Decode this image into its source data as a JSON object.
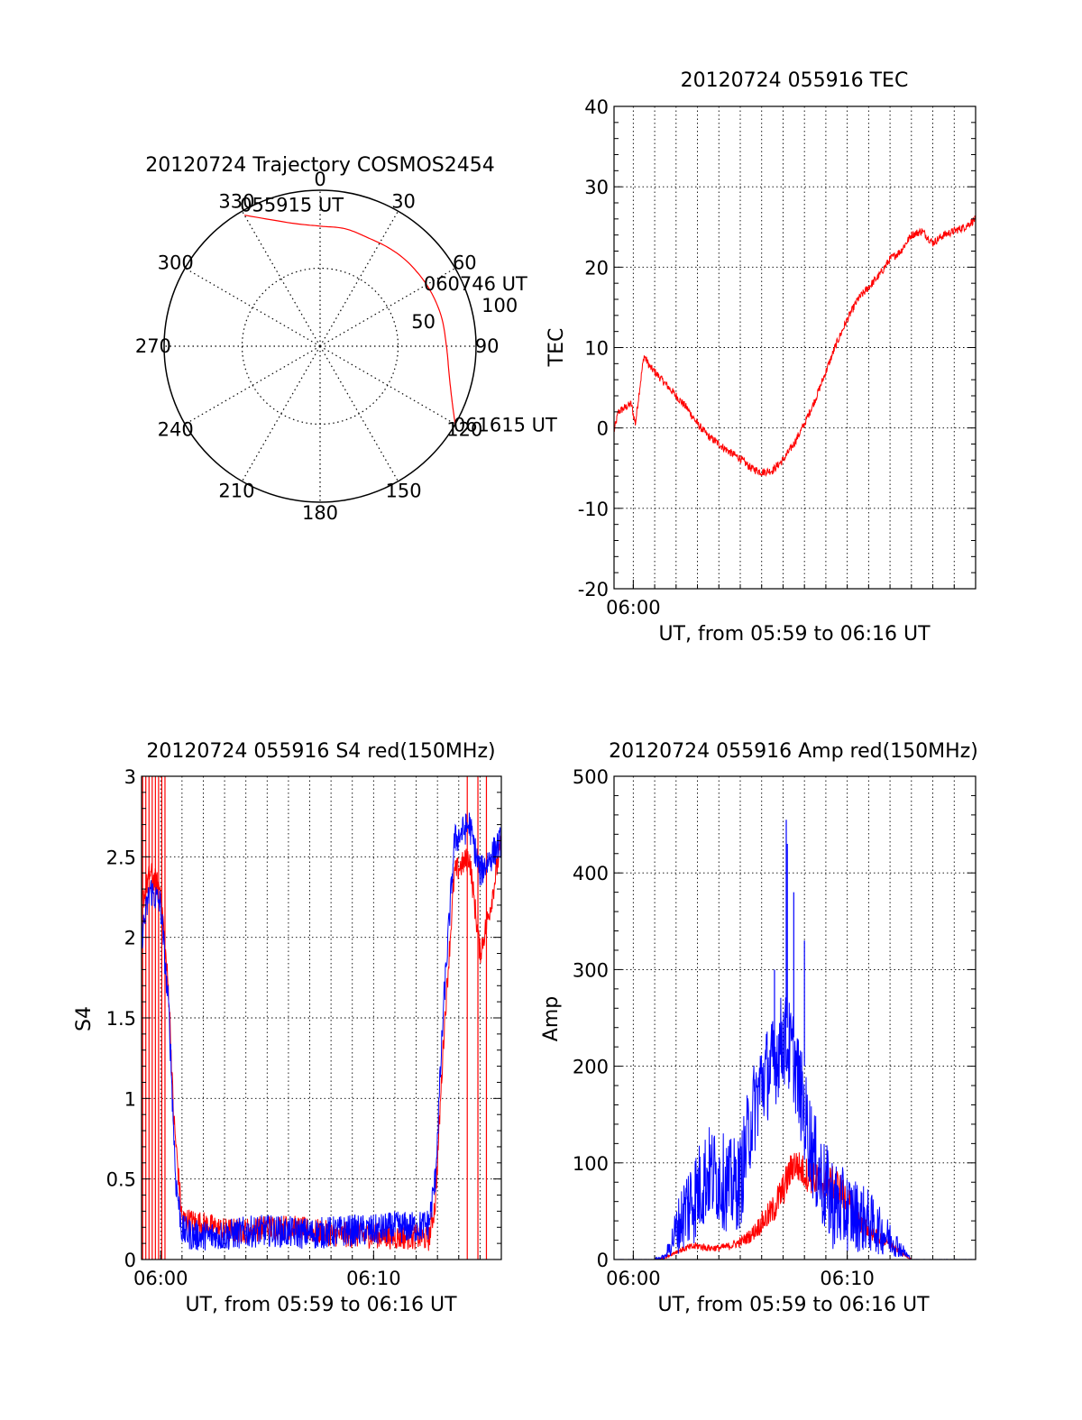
{
  "chart_data": [
    {
      "id": "polar",
      "type": "polar",
      "title": "20120724 Trajectory COSMOS2454",
      "azimuth_labels": [
        "0",
        "30",
        "60",
        "90",
        "120",
        "150",
        "180",
        "210",
        "240",
        "270",
        "300",
        "330"
      ],
      "azimuths_deg": [
        0,
        30,
        60,
        90,
        120,
        150,
        180,
        210,
        240,
        270,
        300,
        330
      ],
      "radial_labels": [
        "50",
        "100"
      ],
      "radial_values": [
        50,
        100
      ],
      "rmax": 100,
      "trajectory": {
        "color": "#ff0000",
        "points": [
          [
            330.0,
            97
          ],
          [
            347.0,
            81
          ],
          [
            0.0,
            77
          ],
          [
            12.0,
            77
          ],
          [
            24.0,
            76
          ],
          [
            36.0,
            77
          ],
          [
            48.0,
            78
          ],
          [
            62.0,
            79
          ],
          [
            76.0,
            80
          ],
          [
            90.0,
            81
          ],
          [
            103.0,
            85
          ],
          [
            113.0,
            92
          ],
          [
            120.0,
            100
          ]
        ]
      },
      "annotations": [
        {
          "text": "055915 UT",
          "az": 330,
          "r": 97
        },
        {
          "text": "060746 UT",
          "az": 64,
          "r": 79
        },
        {
          "text": "061615 UT",
          "az": 120,
          "r": 100
        }
      ]
    },
    {
      "id": "tec",
      "type": "line",
      "title": "20120724 055916 TEC",
      "xlabel": "UT, from 05:59 to 06:16 UT",
      "ylabel": "TEC",
      "xlim": [
        359.1,
        376.0
      ],
      "ylim": [
        -20,
        40
      ],
      "yticks": [
        -20,
        -10,
        0,
        10,
        20,
        30,
        40
      ],
      "ytick_labels": [
        "-20",
        "-10",
        "0",
        "10",
        "20",
        "30",
        "40"
      ],
      "xticks": [
        360
      ],
      "xtick_labels": [
        "06:00"
      ],
      "grid": true,
      "series": [
        {
          "color": "#ff0000",
          "noise": 0.5,
          "x": [
            359.1,
            359.3,
            359.6,
            359.9,
            360.1,
            360.3,
            360.5,
            360.8,
            361.0,
            361.5,
            362.0,
            362.5,
            363.0,
            363.5,
            364.0,
            364.5,
            365.0,
            365.5,
            366.0,
            366.5,
            367.0,
            367.5,
            368.0,
            368.5,
            369.0,
            369.5,
            370.0,
            370.5,
            371.0,
            371.5,
            372.0,
            372.5,
            373.0,
            373.5,
            374.0,
            374.5,
            375.0,
            375.5,
            376.0
          ],
          "y": [
            -0.5,
            2.0,
            2.5,
            3.0,
            0.5,
            5.0,
            9.0,
            7.5,
            7.0,
            5.5,
            4.0,
            2.5,
            0.5,
            -1.0,
            -2.0,
            -3.0,
            -3.8,
            -5.0,
            -5.5,
            -5.3,
            -4.0,
            -2.0,
            0.5,
            3.5,
            7.0,
            10.5,
            13.5,
            16.0,
            17.5,
            19.0,
            21.0,
            22.0,
            24.0,
            24.5,
            23.0,
            24.0,
            24.5,
            25.0,
            26.0
          ]
        }
      ]
    },
    {
      "id": "s4",
      "type": "line",
      "title": "20120724 055916 S4 red(150MHz)",
      "xlabel": "UT, from 05:59 to 06:16 UT",
      "ylabel": "S4",
      "xlim": [
        359.1,
        376.0
      ],
      "ylim": [
        0,
        3
      ],
      "yticks": [
        0,
        0.5,
        1,
        1.5,
        2,
        2.5,
        3
      ],
      "ytick_labels": [
        "0",
        "0.5",
        "1",
        "1.5",
        "2",
        "2.5",
        "3"
      ],
      "xticks": [
        360,
        370
      ],
      "xtick_labels": [
        "06:00",
        "06:10"
      ],
      "grid": true,
      "series": [
        {
          "color": "#ff0000",
          "noise": 0.08,
          "x": [
            359.1,
            359.5,
            360.0,
            360.4,
            360.6,
            361.0,
            362.0,
            363.0,
            364.0,
            365.0,
            366.0,
            367.0,
            368.0,
            369.0,
            370.0,
            371.0,
            372.0,
            372.6,
            372.9,
            373.3,
            373.8,
            374.5,
            375.0,
            375.5,
            376.0
          ],
          "y": [
            2.2,
            2.4,
            2.3,
            1.6,
            0.9,
            0.25,
            0.22,
            0.18,
            0.18,
            0.2,
            0.2,
            0.18,
            0.16,
            0.15,
            0.15,
            0.14,
            0.14,
            0.13,
            0.35,
            1.4,
            2.4,
            2.5,
            1.9,
            2.2,
            2.6
          ],
          "spikes_x": [
            359.15,
            359.3,
            359.45,
            359.6,
            359.75,
            359.9,
            360.05,
            360.2,
            374.4,
            374.9,
            375.3
          ],
          "spikes_y0": [
            0,
            0,
            0,
            0,
            0,
            0,
            0,
            0,
            0,
            0,
            0
          ],
          "spikes_y1": [
            3,
            3,
            3,
            3,
            3,
            3,
            3,
            3,
            3,
            3,
            3
          ]
        },
        {
          "color": "#0000ff",
          "noise": 0.1,
          "x": [
            359.1,
            359.5,
            360.0,
            360.4,
            360.7,
            361.0,
            361.5,
            362.0,
            363.0,
            364.0,
            365.0,
            366.0,
            367.0,
            368.0,
            369.0,
            370.0,
            371.0,
            372.0,
            372.6,
            372.9,
            373.3,
            373.8,
            374.5,
            375.0,
            375.5,
            376.0
          ],
          "y": [
            2.0,
            2.3,
            2.2,
            1.5,
            0.5,
            0.18,
            0.15,
            0.14,
            0.15,
            0.17,
            0.18,
            0.17,
            0.16,
            0.17,
            0.18,
            0.18,
            0.2,
            0.2,
            0.22,
            0.5,
            1.6,
            2.6,
            2.7,
            2.4,
            2.5,
            2.6
          ]
        }
      ]
    },
    {
      "id": "amp",
      "type": "line",
      "title": "20120724 055916 Amp red(150MHz)",
      "xlabel": "UT, from 05:59 to 06:16 UT",
      "ylabel": "Amp",
      "xlim": [
        359.1,
        376.0
      ],
      "ylim": [
        0,
        500
      ],
      "yticks": [
        0,
        100,
        200,
        300,
        400,
        500
      ],
      "ytick_labels": [
        "0",
        "100",
        "200",
        "300",
        "400",
        "500"
      ],
      "xticks": [
        360,
        370
      ],
      "xtick_labels": [
        "06:00",
        "06:10"
      ],
      "grid": true,
      "series": [
        {
          "color": "#ff0000",
          "noise": 18,
          "x": [
            359.1,
            361.0,
            361.5,
            362.0,
            362.5,
            363.0,
            363.5,
            364.0,
            364.5,
            365.0,
            365.5,
            366.0,
            366.5,
            367.0,
            367.5,
            368.0,
            368.5,
            369.0,
            369.5,
            370.0,
            370.5,
            371.0,
            371.5,
            372.0,
            373.0,
            374.0,
            375.0,
            376.0
          ],
          "y": [
            0,
            0,
            2,
            8,
            12,
            14,
            12,
            12,
            14,
            18,
            25,
            38,
            50,
            72,
            100,
            90,
            82,
            80,
            78,
            60,
            40,
            30,
            22,
            15,
            0,
            0,
            0,
            0
          ]
        },
        {
          "color": "#0000ff",
          "noise": 50,
          "x": [
            359.1,
            361.0,
            361.5,
            362.0,
            362.5,
            363.0,
            363.5,
            364.0,
            364.5,
            365.0,
            365.5,
            366.0,
            366.5,
            367.0,
            367.5,
            368.0,
            368.5,
            369.0,
            369.5,
            370.0,
            370.5,
            371.0,
            371.5,
            372.0,
            373.0,
            374.0,
            375.0,
            376.0
          ],
          "y": [
            0,
            0,
            3,
            30,
            55,
            70,
            90,
            85,
            75,
            80,
            145,
            185,
            200,
            230,
            210,
            150,
            100,
            70,
            55,
            50,
            45,
            40,
            30,
            22,
            0,
            0,
            0,
            0
          ],
          "spikes_x": [
            367.15,
            367.2,
            367.5,
            368.0,
            366.6
          ],
          "spikes_y0": [
            250,
            240,
            230,
            200,
            180
          ],
          "spikes_y1": [
            455,
            430,
            380,
            330,
            300
          ]
        }
      ]
    }
  ]
}
